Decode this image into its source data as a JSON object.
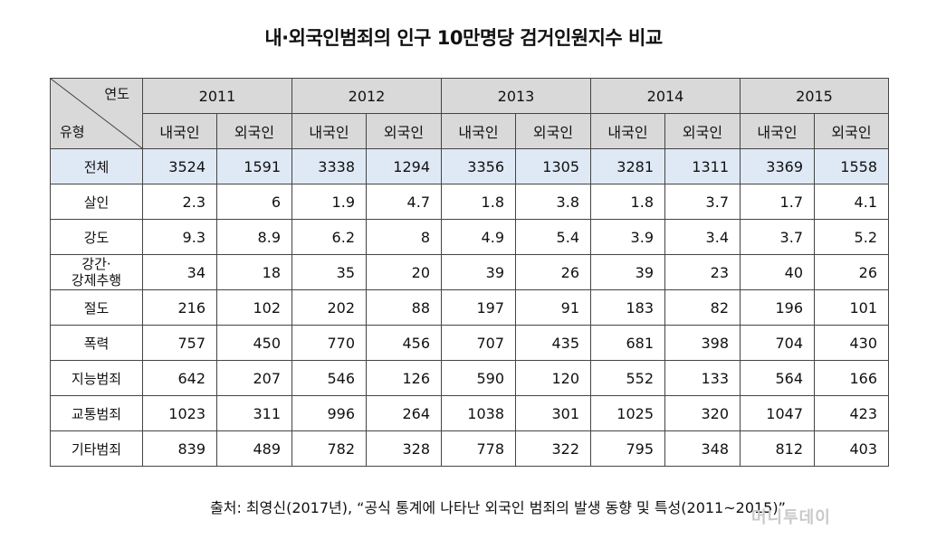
{
  "title": "내·외국인범죄의 인구 10만명당 검거인원지수 비교",
  "header": {
    "corner_year": "연도",
    "corner_type": "유형",
    "years": [
      "2011",
      "2012",
      "2013",
      "2014",
      "2015"
    ],
    "sub_domestic": "내국인",
    "sub_foreign": "외국인"
  },
  "rows": [
    {
      "category": "전체",
      "values": [
        "3524",
        "1591",
        "3338",
        "1294",
        "3356",
        "1305",
        "3281",
        "1311",
        "3369",
        "1558"
      ]
    },
    {
      "category": "살인",
      "values": [
        "2.3",
        "6",
        "1.9",
        "4.7",
        "1.8",
        "3.8",
        "1.8",
        "3.7",
        "1.7",
        "4.1"
      ]
    },
    {
      "category": "강도",
      "values": [
        "9.3",
        "8.9",
        "6.2",
        "8",
        "4.9",
        "5.4",
        "3.9",
        "3.4",
        "3.7",
        "5.2"
      ]
    },
    {
      "category": "강간·\n강제추행",
      "values": [
        "34",
        "18",
        "35",
        "20",
        "39",
        "26",
        "39",
        "23",
        "40",
        "26"
      ]
    },
    {
      "category": "절도",
      "values": [
        "216",
        "102",
        "202",
        "88",
        "197",
        "91",
        "183",
        "82",
        "196",
        "101"
      ]
    },
    {
      "category": "폭력",
      "values": [
        "757",
        "450",
        "770",
        "456",
        "707",
        "435",
        "681",
        "398",
        "704",
        "430"
      ]
    },
    {
      "category": "지능범죄",
      "values": [
        "642",
        "207",
        "546",
        "126",
        "590",
        "120",
        "552",
        "133",
        "564",
        "166"
      ]
    },
    {
      "category": "교통범죄",
      "values": [
        "1023",
        "311",
        "996",
        "264",
        "1038",
        "301",
        "1025",
        "320",
        "1047",
        "423"
      ]
    },
    {
      "category": "기타범죄",
      "values": [
        "839",
        "489",
        "782",
        "328",
        "778",
        "322",
        "795",
        "348",
        "812",
        "403"
      ]
    }
  ],
  "source": "출처: 최영신(2017년), “공식 통계에 나타난 외국인 범죄의 발생 동향 및 특성(2011~2015)”",
  "watermark": "머니투데이"
}
